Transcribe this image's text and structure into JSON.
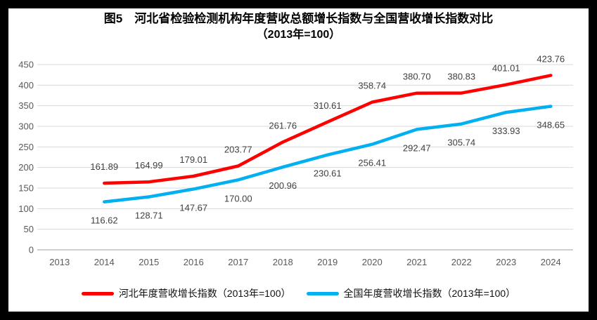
{
  "title": {
    "line1": "图5　河北省检验检测机构年度营收总额增长指数与全国营收增长指数对比",
    "line2": "（2013年=100）"
  },
  "chart_data": {
    "type": "line",
    "categories": [
      "2013",
      "2014",
      "2015",
      "2016",
      "2017",
      "2018",
      "2019",
      "2020",
      "2021",
      "2022",
      "2023",
      "2024"
    ],
    "series": [
      {
        "name": "河北年度营收增长指数（2013年=100）",
        "color": "#FF0000",
        "label_position": "above",
        "values": [
          null,
          161.89,
          164.99,
          179.01,
          203.77,
          261.76,
          310.61,
          358.74,
          380.7,
          380.83,
          401.01,
          423.76
        ]
      },
      {
        "name": "全国年度营收增长指数（2013年=100）",
        "color": "#00B0F0",
        "label_position": "below",
        "values": [
          null,
          116.62,
          128.71,
          147.67,
          170.0,
          200.96,
          230.61,
          256.41,
          292.47,
          305.74,
          333.93,
          348.65
        ]
      }
    ],
    "ylim": [
      0,
      450
    ],
    "ytick_step": 50,
    "yticks": [
      0,
      50,
      100,
      150,
      200,
      250,
      300,
      350,
      400,
      450
    ],
    "grid": true,
    "legend_position": "bottom",
    "data_label_decimals": 2,
    "xlabel": "",
    "ylabel": ""
  },
  "colors": {
    "grid": "#D9D9D9",
    "axis_line": "#BFBFBF",
    "tick_label": "#595959",
    "data_label": "#404040",
    "frame": "#000000",
    "background": "#FFFFFF"
  }
}
